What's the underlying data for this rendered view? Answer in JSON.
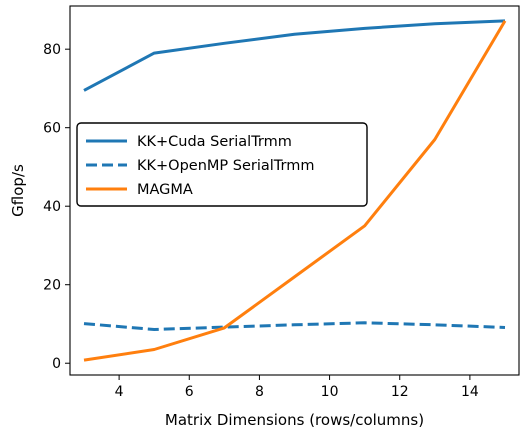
{
  "chart_data": {
    "type": "line",
    "title": "",
    "xlabel": "Matrix Dimensions (rows/columns)",
    "ylabel": "Gflop/s",
    "xlim": [
      2.6,
      15.4
    ],
    "ylim": [
      -3,
      91
    ],
    "xticks": [
      "4",
      "6",
      "8",
      "10",
      "12",
      "14"
    ],
    "xtick_values": [
      4,
      6,
      8,
      10,
      12,
      14
    ],
    "yticks": [
      "0",
      "20",
      "40",
      "60",
      "80"
    ],
    "ytick_values": [
      0,
      20,
      40,
      60,
      80
    ],
    "grid": false,
    "legend_position": "center-left",
    "x": [
      3,
      5,
      7,
      9,
      11,
      13,
      15
    ],
    "series": [
      {
        "name": "KK+Cuda SerialTrmm",
        "values": [
          69.5,
          79,
          81.5,
          83.8,
          85.3,
          86.5,
          87.2
        ],
        "color": "#1f77b4",
        "style": "solid"
      },
      {
        "name": "KK+OpenMP SerialTrmm",
        "values": [
          10.1,
          8.6,
          9.2,
          9.8,
          10.3,
          9.8,
          9.1
        ],
        "color": "#1f77b4",
        "style": "dashed"
      },
      {
        "name": "MAGMA",
        "values": [
          0.8,
          3.5,
          9.0,
          22.0,
          35.0,
          57.0,
          87.2
        ],
        "color": "#ff7f0e",
        "style": "solid"
      }
    ]
  }
}
